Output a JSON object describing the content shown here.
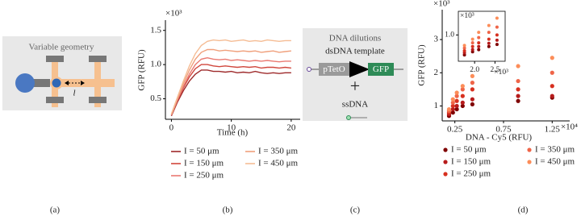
{
  "panels": {
    "a": {
      "label": "(a)",
      "title": "Variable geometry",
      "length_symbol": "l"
    },
    "b": {
      "label": "(b)"
    },
    "c": {
      "label": "(c)",
      "title": "DNA dilutions",
      "template": "dsDNA template",
      "promoter": "pTetO",
      "gene": "GFP",
      "plus": "+",
      "single_strand": "ssDNA"
    },
    "d": {
      "label": "(d)"
    }
  },
  "chart_data": [
    {
      "type": "line",
      "x_label": "Time (h)",
      "y_label": "GFP (RFU)",
      "y_multiplier": "×10³",
      "x": [
        0,
        1,
        2,
        3,
        4,
        5,
        6,
        7,
        8,
        9,
        10,
        11,
        12,
        13,
        14,
        15,
        16,
        17,
        18,
        19,
        20
      ],
      "xlim": [
        -1,
        21.5
      ],
      "ylim": [
        0.2,
        1.65
      ],
      "xticks": [
        0,
        10,
        20
      ],
      "yticks": [
        {
          "value": 0.5,
          "label": "0.5"
        },
        {
          "value": 1,
          "label": "1.0"
        },
        {
          "value": 1.5,
          "label": "1.5"
        }
      ],
      "series": [
        {
          "name": "I = 50 μm",
          "color": "#9e2a2b",
          "values": [
            0.25,
            0.45,
            0.62,
            0.76,
            0.86,
            0.92,
            0.92,
            0.9,
            0.9,
            0.89,
            0.9,
            0.88,
            0.89,
            0.88,
            0.9,
            0.88,
            0.87,
            0.88,
            0.87,
            0.88,
            0.88
          ]
        },
        {
          "name": "I = 150 μm",
          "color": "#d0463c",
          "values": [
            0.26,
            0.47,
            0.66,
            0.82,
            0.94,
            1.0,
            1.0,
            0.98,
            0.97,
            0.98,
            0.97,
            0.96,
            0.97,
            0.96,
            0.97,
            0.95,
            0.96,
            0.96,
            0.95,
            0.96,
            0.95
          ]
        },
        {
          "name": "I = 250 μm",
          "color": "#ea7a72",
          "values": [
            0.26,
            0.48,
            0.68,
            0.86,
            1.0,
            1.08,
            1.1,
            1.08,
            1.07,
            1.08,
            1.06,
            1.07,
            1.06,
            1.05,
            1.06,
            1.05,
            1.06,
            1.05,
            1.04,
            1.05,
            1.05
          ]
        },
        {
          "name": "I = 350 μm",
          "color": "#f0a07c",
          "values": [
            0.27,
            0.5,
            0.72,
            0.92,
            1.08,
            1.18,
            1.22,
            1.22,
            1.2,
            1.21,
            1.2,
            1.19,
            1.2,
            1.19,
            1.2,
            1.18,
            1.19,
            1.2,
            1.18,
            1.19,
            1.2
          ]
        },
        {
          "name": "I = 450 μm",
          "color": "#f5bc94",
          "values": [
            0.28,
            0.52,
            0.76,
            0.98,
            1.16,
            1.28,
            1.34,
            1.36,
            1.35,
            1.36,
            1.34,
            1.35,
            1.36,
            1.34,
            1.35,
            1.34,
            1.36,
            1.35,
            1.34,
            1.35,
            1.35
          ]
        }
      ]
    },
    {
      "type": "scatter",
      "x_label": "DNA - Cy5 (RFU)",
      "y_label": "GFP (RFU)",
      "x_multiplier": "×10⁴",
      "y_multiplier": "×10³",
      "xlim": [
        0.12,
        1.43
      ],
      "ylim": [
        0.55,
        3.9
      ],
      "xticks": [
        0.25,
        0.75,
        1.25
      ],
      "yticks": [
        1,
        2,
        3
      ],
      "series": [
        {
          "name": "I = 50 μm",
          "color": "#7f0000",
          "x": [
            0.19,
            0.23,
            0.27,
            0.33,
            0.43,
            0.9,
            1.25
          ],
          "values": [
            0.7,
            0.8,
            0.9,
            1.0,
            1.05,
            1.15,
            1.25
          ]
        },
        {
          "name": "I = 150 μm",
          "color": "#b71c1c",
          "x": [
            0.19,
            0.23,
            0.27,
            0.33,
            0.43,
            0.9,
            1.25
          ],
          "values": [
            0.75,
            0.9,
            1.0,
            1.1,
            1.2,
            1.3,
            1.3
          ]
        },
        {
          "name": "I = 250 μm",
          "color": "#d7301f",
          "x": [
            0.19,
            0.23,
            0.27,
            0.33,
            0.43,
            0.9,
            1.25
          ],
          "values": [
            0.8,
            1.0,
            1.15,
            1.3,
            1.5,
            1.5,
            1.6
          ]
        },
        {
          "name": "I = 350 μm",
          "color": "#ef6548",
          "x": [
            0.19,
            0.23,
            0.27,
            0.33,
            0.43,
            0.9,
            1.25
          ],
          "values": [
            0.85,
            1.1,
            1.3,
            1.5,
            1.7,
            1.75,
            2.0
          ]
        },
        {
          "name": "I = 450 μm",
          "color": "#fc8d59",
          "x": [
            0.19,
            0.23,
            0.27,
            0.33,
            0.43,
            0.9,
            1.25
          ],
          "values": [
            0.9,
            1.2,
            1.4,
            1.6,
            1.9,
            2.2,
            2.45
          ]
        }
      ]
    },
    {
      "type": "scatter",
      "x_multiplier": "×10³",
      "y_multiplier": "×10³",
      "xlim": [
        1.6,
        2.75
      ],
      "ylim": [
        0.5,
        1.45
      ],
      "xticks": [
        {
          "value": 2,
          "label": "2.0"
        },
        {
          "value": 2.5,
          "label": "2.5"
        }
      ],
      "yticks": [
        {
          "value": 1,
          "label": "1.0"
        }
      ],
      "series": [
        {
          "color": "#7f0000",
          "x": [
            1.75,
            1.95,
            2.1,
            2.35,
            2.55
          ],
          "values": [
            0.62,
            0.68,
            0.72,
            0.78,
            0.82
          ]
        },
        {
          "color": "#b71c1c",
          "x": [
            1.75,
            1.95,
            2.1,
            2.35,
            2.55
          ],
          "values": [
            0.66,
            0.72,
            0.78,
            0.84,
            0.9
          ]
        },
        {
          "color": "#d7301f",
          "x": [
            1.75,
            1.95,
            2.1,
            2.35,
            2.55
          ],
          "values": [
            0.7,
            0.78,
            0.85,
            0.92,
            1.0
          ]
        },
        {
          "color": "#ef6548",
          "x": [
            1.75,
            1.95,
            2.1,
            2.35,
            2.55
          ],
          "values": [
            0.75,
            0.85,
            0.95,
            1.05,
            1.15
          ]
        },
        {
          "color": "#fc8d59",
          "x": [
            1.75,
            1.95,
            2.1,
            2.35,
            2.55
          ],
          "values": [
            0.8,
            0.92,
            1.05,
            1.18,
            1.32
          ]
        }
      ]
    }
  ]
}
